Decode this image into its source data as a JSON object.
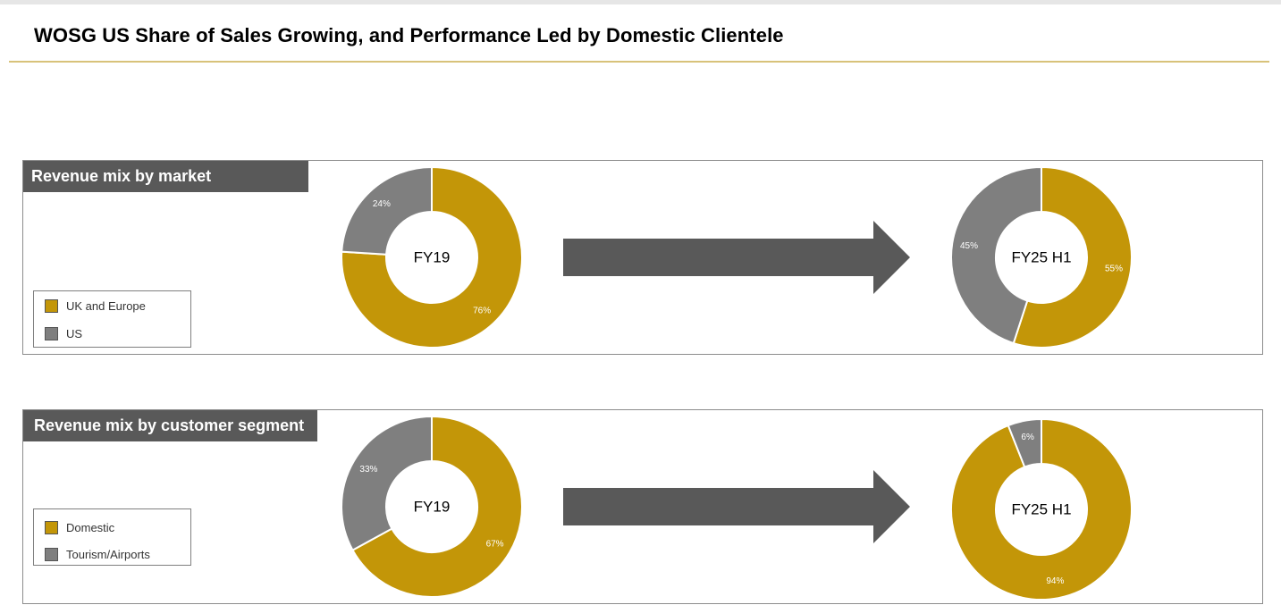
{
  "page": {
    "title": "WOSG US Share of Sales Growing, and Performance Led by Domestic Clientele"
  },
  "colors": {
    "gold": "#c39608",
    "gray": "#7f7f7f",
    "header_bg": "#595959",
    "arrow": "#595959"
  },
  "panels": [
    {
      "header": "Revenue mix by market",
      "legend": [
        {
          "label": "UK and Europe",
          "color": "#c39608"
        },
        {
          "label": "US",
          "color": "#7f7f7f"
        }
      ]
    },
    {
      "header": "Revenue mix by customer segment",
      "legend": [
        {
          "label": "Domestic",
          "color": "#c39608"
        },
        {
          "label": "Tourism/Airports",
          "color": "#7f7f7f"
        }
      ]
    }
  ],
  "chart_data": [
    {
      "type": "pie",
      "center_label": "FY19",
      "slices": [
        {
          "label": "UK and Europe",
          "value": 76,
          "display": "76%",
          "color": "#c39608"
        },
        {
          "label": "US",
          "value": 24,
          "display": "24%",
          "color": "#7f7f7f"
        }
      ]
    },
    {
      "type": "pie",
      "center_label": "FY25 H1",
      "slices": [
        {
          "label": "UK and Europe",
          "value": 55,
          "display": "55%",
          "color": "#c39608"
        },
        {
          "label": "US",
          "value": 45,
          "display": "45%",
          "color": "#7f7f7f"
        }
      ]
    },
    {
      "type": "pie",
      "center_label": "FY19",
      "slices": [
        {
          "label": "Domestic",
          "value": 67,
          "display": "67%",
          "color": "#c39608"
        },
        {
          "label": "Tourism/Airports",
          "value": 33,
          "display": "33%",
          "color": "#7f7f7f"
        }
      ]
    },
    {
      "type": "pie",
      "center_label": "FY25 H1",
      "slices": [
        {
          "label": "Domestic",
          "value": 94,
          "display": "94%",
          "color": "#c39608"
        },
        {
          "label": "Tourism/Airports",
          "value": 6,
          "display": "6%",
          "color": "#7f7f7f"
        }
      ]
    }
  ]
}
